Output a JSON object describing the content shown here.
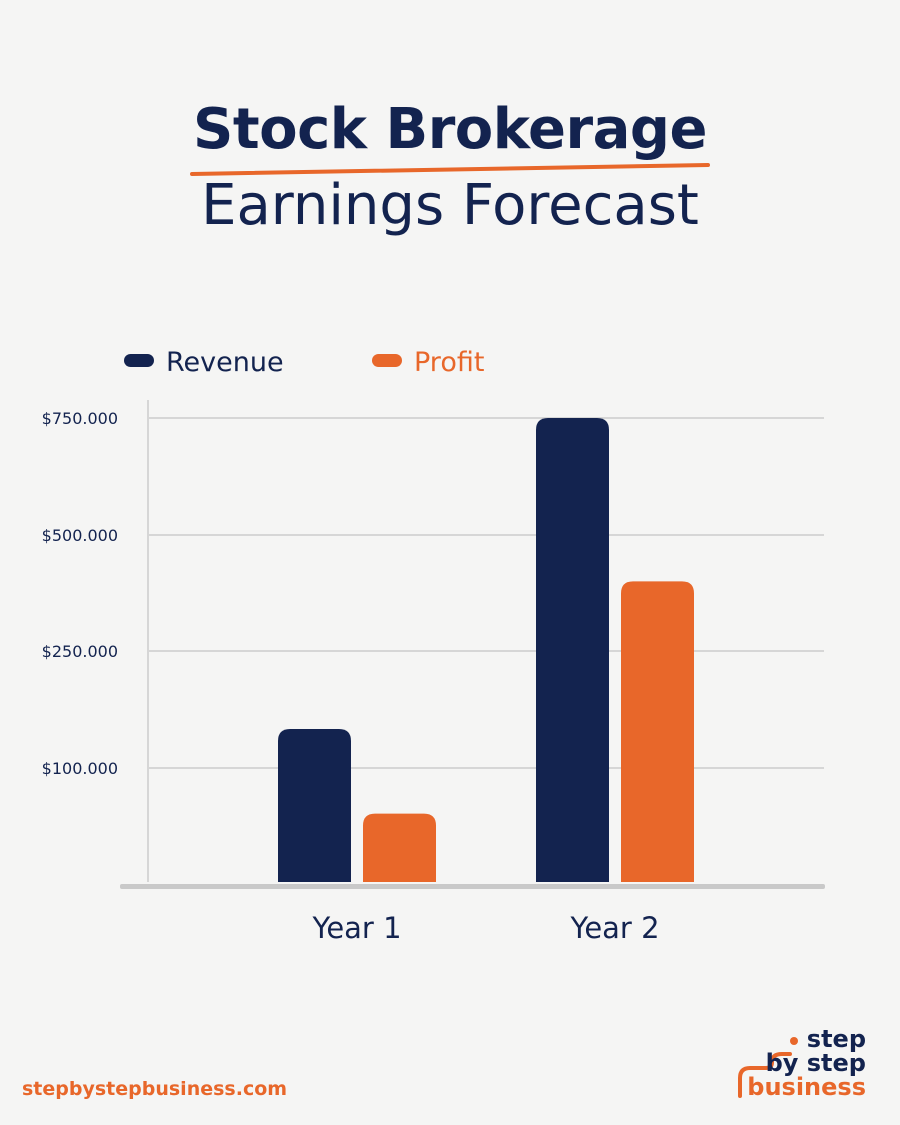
{
  "title": {
    "line1": "Stock Brokerage",
    "line2": "Earnings Forecast"
  },
  "colors": {
    "navy": "#13234f",
    "orange": "#e8672a",
    "grid": "#d6d6d6",
    "background": "#f5f5f4"
  },
  "chart_data": {
    "type": "bar",
    "categories": [
      "Year 1",
      "Year 2"
    ],
    "series": [
      {
        "name": "Revenue",
        "color": "#13234f",
        "values": [
          150000,
          750000
        ]
      },
      {
        "name": "Profit",
        "color": "#e8672a",
        "values": [
          60000,
          400000
        ]
      }
    ],
    "yticks": [
      {
        "value": 100000,
        "label": "$100.000"
      },
      {
        "value": 250000,
        "label": "$250.000"
      },
      {
        "value": 500000,
        "label": "$500.000"
      },
      {
        "value": 750000,
        "label": "$750.000"
      }
    ],
    "grid": true,
    "legend_position": "top-left"
  },
  "footer": {
    "url": "stepbystepbusiness.com",
    "logo_line1": "step",
    "logo_line2": "by step",
    "logo_line3": "business"
  }
}
